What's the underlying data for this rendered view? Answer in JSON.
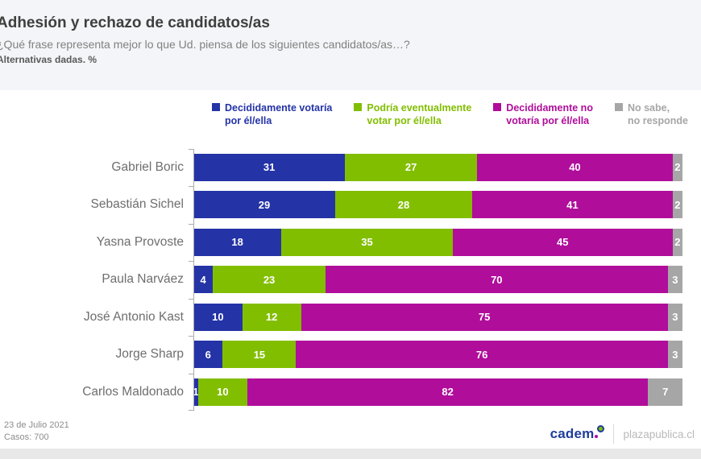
{
  "header": {
    "title": "Adhesión y rechazo de candidatos/as",
    "subtitle": "¿Qué frase representa mejor lo que Ud. piensa de los siguientes candidatos/as…?",
    "note": "Alternativas dadas. %"
  },
  "legend": [
    {
      "line1": "Decididamente votaría",
      "line2": "por él/ella",
      "color": "#2433A6"
    },
    {
      "line1": "Podría eventualmente",
      "line2": "votar por él/ella",
      "color": "#82BE00"
    },
    {
      "line1": "Decididamente no",
      "line2": "votaría por él/ella",
      "color": "#B00D9B"
    },
    {
      "line1": "No sabe,",
      "line2": "no responde",
      "color": "#A6A6A6"
    }
  ],
  "chart_data": {
    "type": "bar",
    "orientation": "horizontal",
    "stacked": true,
    "title": "Adhesión y rechazo de candidatos/as",
    "xlabel": "",
    "ylabel": "",
    "xlim": [
      0,
      100
    ],
    "grid": false,
    "legend_position": "top",
    "value_labels": "white bold numbers inside each segment",
    "categories": [
      "Gabriel Boric",
      "Sebastián Sichel",
      "Yasna Provoste",
      "Paula Narváez",
      "José Antonio Kast",
      "Jorge Sharp",
      "Carlos Maldonado"
    ],
    "series": [
      {
        "name": "Decididamente votaría por él/ella",
        "color": "#2433A6",
        "values": [
          31,
          29,
          18,
          4,
          10,
          6,
          1
        ]
      },
      {
        "name": "Podría eventualmente votar por él/ella",
        "color": "#82BE00",
        "values": [
          27,
          28,
          35,
          23,
          12,
          15,
          10
        ]
      },
      {
        "name": "Decididamente no votaría por él/ella",
        "color": "#B00D9B",
        "values": [
          40,
          41,
          45,
          70,
          75,
          76,
          82
        ]
      },
      {
        "name": "No sabe, no responde",
        "color": "#A6A6A6",
        "values": [
          2,
          2,
          2,
          3,
          3,
          3,
          7
        ]
      }
    ]
  },
  "footer": {
    "date": "23 de Julio 2021",
    "cases": "Casos: 700",
    "brand": "cadem",
    "partner": "plazapublica.cl"
  }
}
